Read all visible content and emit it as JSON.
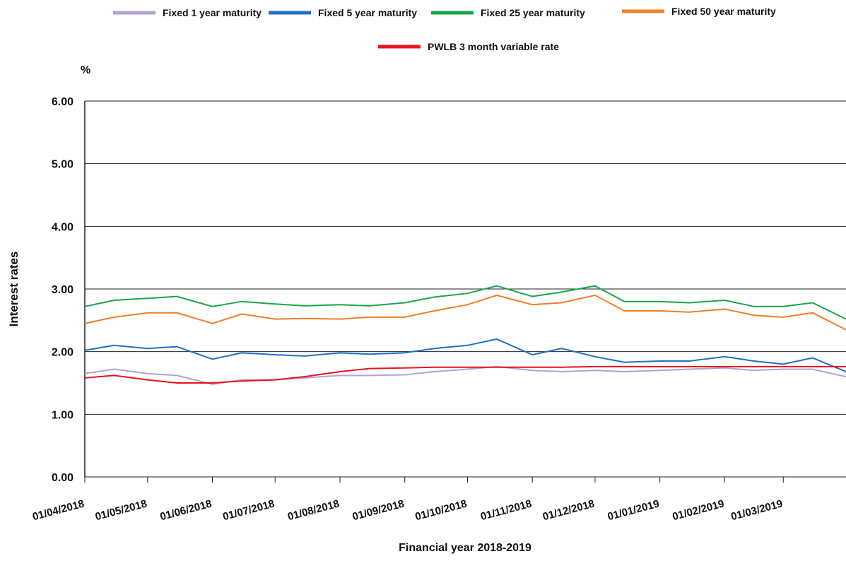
{
  "chart_data": {
    "type": "line",
    "y_unit": "%",
    "y_label": "Interest rates",
    "x_label": "Financial year 2018-2019",
    "x": [
      "01/04/2018",
      "15/04/2018",
      "01/05/2018",
      "15/05/2018",
      "01/06/2018",
      "15/06/2018",
      "01/07/2018",
      "15/07/2018",
      "01/08/2018",
      "15/08/2018",
      "01/09/2018",
      "15/09/2018",
      "01/10/2018",
      "15/10/2018",
      "01/11/2018",
      "15/11/2018",
      "01/12/2018",
      "15/12/2018",
      "01/01/2019",
      "15/01/2019",
      "01/02/2019",
      "15/02/2019",
      "01/03/2019",
      "15/03/2019",
      "31/03/2019"
    ],
    "xlim": [
      "01/04/2018",
      "31/03/2019"
    ],
    "xticks": [
      "01/04/2018",
      "01/05/2018",
      "01/06/2018",
      "01/07/2018",
      "01/08/2018",
      "01/09/2018",
      "01/10/2018",
      "01/11/2018",
      "01/12/2018",
      "01/01/2019",
      "01/02/2019",
      "01/03/2019"
    ],
    "ylim": [
      0,
      6
    ],
    "yticks": [
      {
        "value": 0,
        "label": "0.00"
      },
      {
        "value": 1,
        "label": "1.00"
      },
      {
        "value": 2,
        "label": "2.00"
      },
      {
        "value": 3,
        "label": "3.00"
      },
      {
        "value": 4,
        "label": "4.00"
      },
      {
        "value": 5,
        "label": "5.00"
      },
      {
        "value": 6,
        "label": "6.00"
      }
    ],
    "grid": true,
    "legend": "top",
    "series": [
      {
        "name": "Fixed 1 year maturity",
        "color": "#b3a2d1",
        "values": [
          1.65,
          1.72,
          1.65,
          1.62,
          1.48,
          1.55,
          1.55,
          1.58,
          1.62,
          1.62,
          1.63,
          1.68,
          1.72,
          1.76,
          1.7,
          1.68,
          1.7,
          1.68,
          1.7,
          1.72,
          1.74,
          1.7,
          1.72,
          1.72,
          1.6
        ]
      },
      {
        "name": "Fixed 5 year maturity",
        "color": "#1f6fc4",
        "values": [
          2.02,
          2.1,
          2.05,
          2.08,
          1.88,
          1.98,
          1.95,
          1.93,
          1.98,
          1.96,
          1.98,
          2.05,
          2.1,
          2.2,
          1.95,
          2.05,
          1.92,
          1.83,
          1.85,
          1.85,
          1.92,
          1.85,
          1.8,
          1.9,
          1.68
        ]
      },
      {
        "name": "Fixed 25 year maturity",
        "color": "#1aa54a",
        "values": [
          2.72,
          2.82,
          2.85,
          2.88,
          2.72,
          2.8,
          2.76,
          2.73,
          2.75,
          2.73,
          2.78,
          2.87,
          2.93,
          3.05,
          2.88,
          2.95,
          3.05,
          2.8,
          2.8,
          2.78,
          2.82,
          2.72,
          2.72,
          2.78,
          2.52
        ]
      },
      {
        "name": "Fixed 50 year maturity",
        "color": "#f07f2a",
        "values": [
          2.45,
          2.55,
          2.62,
          2.62,
          2.45,
          2.6,
          2.52,
          2.53,
          2.52,
          2.55,
          2.55,
          2.65,
          2.75,
          2.9,
          2.75,
          2.78,
          2.9,
          2.65,
          2.65,
          2.63,
          2.68,
          2.58,
          2.55,
          2.62,
          2.35
        ]
      },
      {
        "name": "PWLB 3 month variable rate",
        "color": "#e8141c",
        "values": [
          1.58,
          1.62,
          1.55,
          1.5,
          1.5,
          1.53,
          1.55,
          1.6,
          1.68,
          1.73,
          1.74,
          1.75,
          1.75,
          1.75,
          1.75,
          1.75,
          1.76,
          1.76,
          1.76,
          1.76,
          1.76,
          1.76,
          1.76,
          1.76,
          1.76
        ]
      }
    ]
  }
}
